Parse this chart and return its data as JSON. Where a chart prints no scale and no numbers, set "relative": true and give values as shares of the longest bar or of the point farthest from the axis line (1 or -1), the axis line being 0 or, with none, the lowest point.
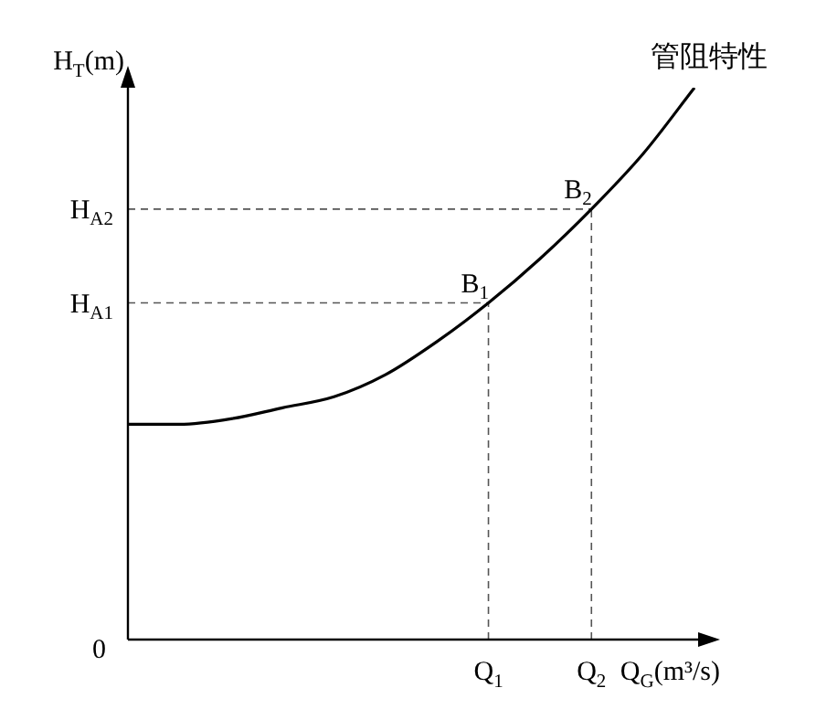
{
  "chart_data": {
    "type": "line",
    "relative": true,
    "xlabel": "Q$_{G}$(m³/s)",
    "ylabel": "H$_{T}$(m)",
    "categories": [
      null,
      null,
      null,
      null,
      null,
      null,
      null,
      "Q$_{1}$",
      null,
      "Q$_{2}$",
      null,
      null
    ],
    "series": [
      {
        "name": "管阻特性",
        "color": "#000000",
        "values": [
          0.39,
          0.39,
          0.4,
          0.42,
          0.44,
          0.48,
          0.54,
          0.61,
          0.69,
          0.78,
          0.88,
          1
        ]
      }
    ],
    "ref_lines": [
      {
        "axis": "y",
        "value": 0.61,
        "label": "H$_{A1}$",
        "color": "#555555",
        "line_style": "dashed"
      },
      {
        "axis": "y",
        "value": 0.78,
        "label": "H$_{A2}$",
        "color": "#555555",
        "line_style": "dashed"
      },
      {
        "axis": "x",
        "value": "Q$_{1}$",
        "color": "#555555",
        "line_style": "dashed"
      },
      {
        "axis": "x",
        "value": "Q$_{2}$",
        "color": "#555555",
        "line_style": "dashed"
      }
    ],
    "annotations": [
      {
        "text": "B$_{1}$",
        "x": "Q$_{1}$",
        "y": 0.61
      },
      {
        "text": "B$_{2}$",
        "x": "Q$_{2}$",
        "y": 0.78
      },
      "0"
    ],
    "legend": false,
    "marker": "none",
    "line_style": "solid"
  }
}
